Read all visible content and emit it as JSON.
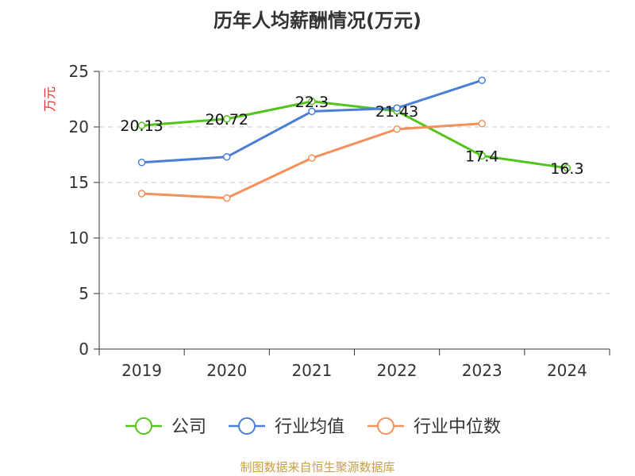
{
  "chart_data": {
    "type": "line",
    "title": "历年人均薪酬情况(万元)",
    "ylabel": "万元",
    "ylim": [
      0,
      25
    ],
    "yticks": [
      0,
      5,
      10,
      15,
      20,
      25
    ],
    "categories": [
      "2019",
      "2020",
      "2021",
      "2022",
      "2023",
      "2024"
    ],
    "grid": true,
    "legend_position": "bottom",
    "series": [
      {
        "name": "公司",
        "color": "#52c41a",
        "values": [
          20.13,
          20.72,
          22.3,
          21.43,
          17.4,
          16.3
        ],
        "labels": [
          "20.13",
          "20.72",
          "22.3",
          "21.43",
          "17.4",
          "16.3"
        ]
      },
      {
        "name": "行业均值",
        "color": "#4a7fd4",
        "values": [
          16.8,
          17.3,
          21.4,
          21.7,
          24.2,
          null
        ]
      },
      {
        "name": "行业中位数",
        "color": "#f4905a",
        "values": [
          14.0,
          13.6,
          17.2,
          19.8,
          20.3,
          null
        ]
      }
    ],
    "source": "制图数据来自恒生聚源数据库",
    "source_color": "#c8a046",
    "ylabel_color": "#e03030"
  }
}
